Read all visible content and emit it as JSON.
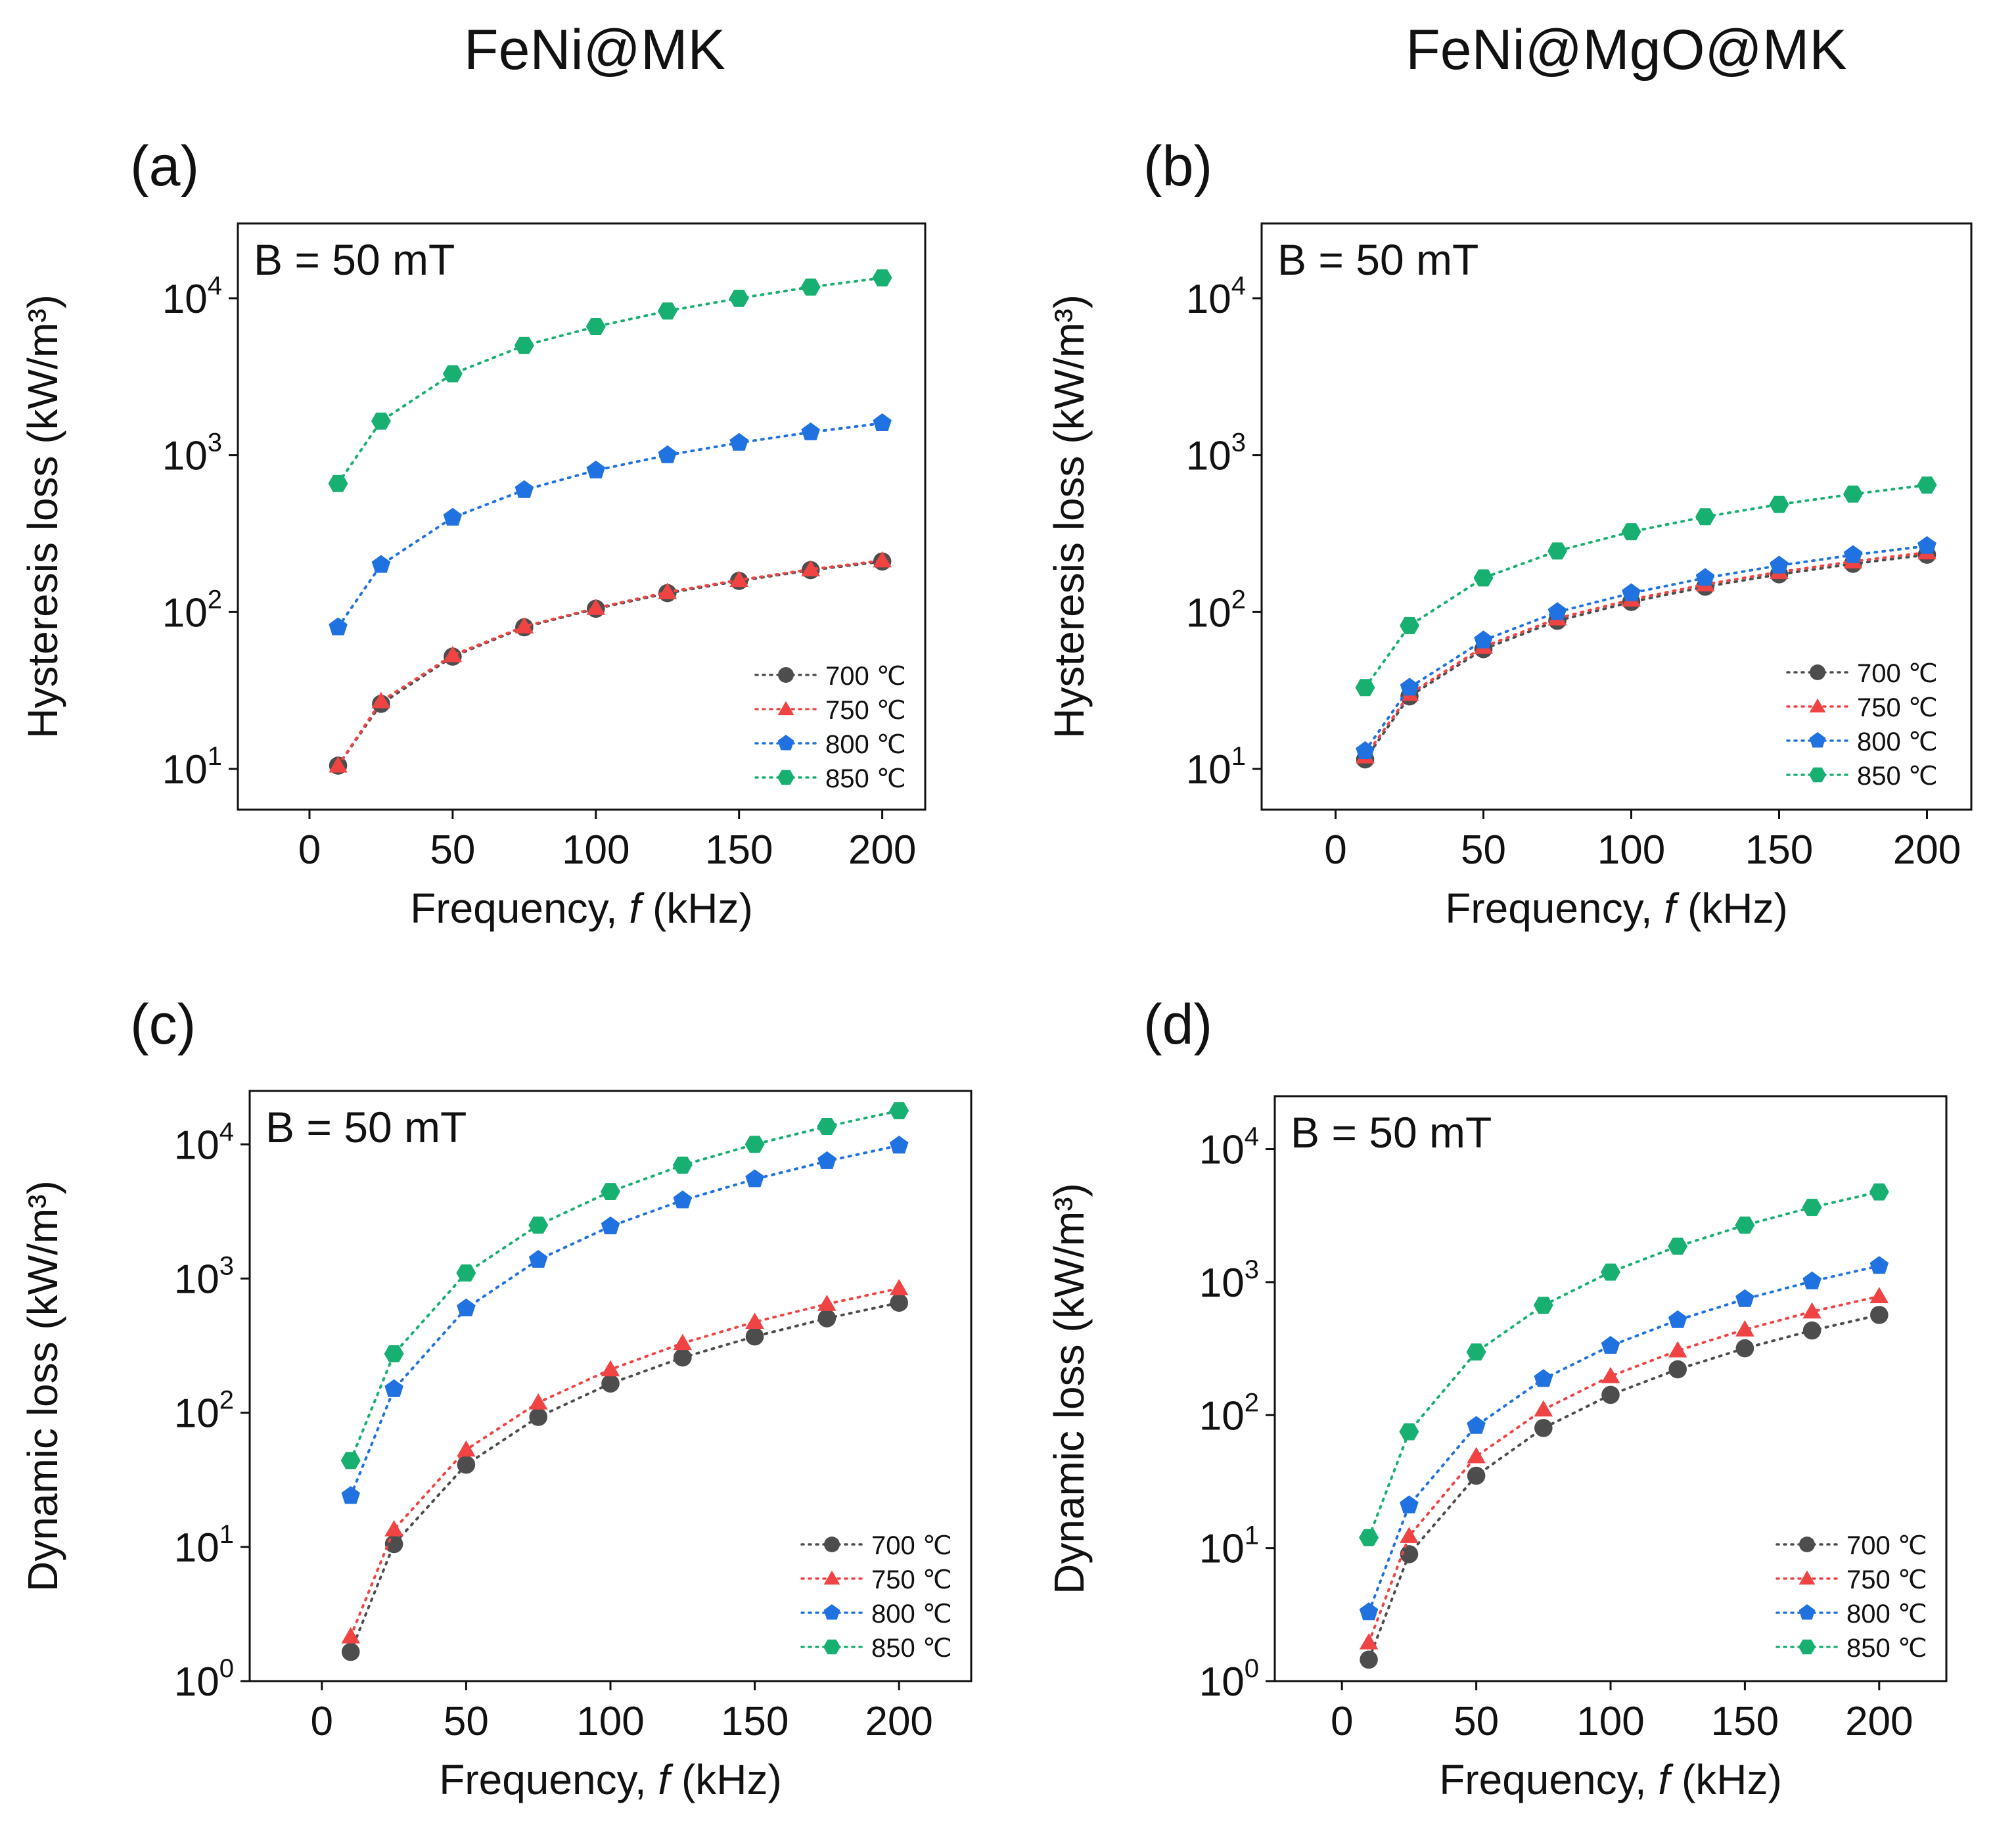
{
  "column_titles": [
    "FeNi@MK",
    "FeNi@MgO@MK"
  ],
  "x_values": [
    10,
    25,
    50,
    75,
    100,
    125,
    150,
    175,
    200
  ],
  "chart_data": [
    {
      "id": "a",
      "type": "line",
      "panel_label": "(a)",
      "annotation": "B = 50 mT",
      "xlabel": "Frequency,",
      "xlabel_symbol": "f",
      "xlabel_unit": "(kHz)",
      "ylabel": "Hysteresis loss (kW/m³)",
      "yscale": "log",
      "xlim": [
        -25,
        215
      ],
      "ylim": [
        5.5,
        30000
      ],
      "xticks": [
        0,
        50,
        100,
        150,
        200
      ],
      "yticks": [
        10,
        100,
        1000,
        10000
      ],
      "ytick_labels": [
        {
          "base": "10",
          "exp": "1"
        },
        {
          "base": "10",
          "exp": "2"
        },
        {
          "base": "10",
          "exp": "3"
        },
        {
          "base": "10",
          "exp": "4"
        }
      ],
      "series": [
        {
          "name": "700 ℃",
          "color": "#4d4d4d",
          "marker": "circle",
          "values": [
            10.5,
            26,
            52,
            80,
            105,
            132,
            158,
            185,
            210
          ]
        },
        {
          "name": "750 ℃",
          "color": "#f04444",
          "marker": "triangle",
          "values": [
            10.5,
            27,
            53,
            81,
            106,
            134,
            160,
            187,
            213
          ]
        },
        {
          "name": "800 ℃",
          "color": "#1f72e0",
          "marker": "pentagon",
          "values": [
            80,
            200,
            400,
            600,
            800,
            1000,
            1200,
            1400,
            1600
          ]
        },
        {
          "name": "850 ℃",
          "color": "#18b070",
          "marker": "hexagon",
          "values": [
            660,
            1650,
            3300,
            5000,
            6600,
            8300,
            10000,
            11800,
            13500
          ]
        }
      ]
    },
    {
      "id": "b",
      "type": "line",
      "panel_label": "(b)",
      "annotation": "B = 50 mT",
      "xlabel": "Frequency,",
      "xlabel_symbol": "f",
      "xlabel_unit": "(kHz)",
      "ylabel": "Hysteresis loss (kW/m³)",
      "yscale": "log",
      "xlim": [
        -25,
        215
      ],
      "ylim": [
        5.5,
        30000
      ],
      "xticks": [
        0,
        50,
        100,
        150,
        200
      ],
      "yticks": [
        10,
        100,
        1000,
        10000
      ],
      "ytick_labels": [
        {
          "base": "10",
          "exp": "1"
        },
        {
          "base": "10",
          "exp": "2"
        },
        {
          "base": "10",
          "exp": "3"
        },
        {
          "base": "10",
          "exp": "4"
        }
      ],
      "series": [
        {
          "name": "700 ℃",
          "color": "#4d4d4d",
          "marker": "circle",
          "values": [
            11.5,
            29,
            58,
            88,
            116,
            145,
            174,
            203,
            232
          ]
        },
        {
          "name": "750 ℃",
          "color": "#f04444",
          "marker": "triangle",
          "values": [
            12,
            30,
            60,
            91,
            120,
            150,
            180,
            210,
            240
          ]
        },
        {
          "name": "800 ℃",
          "color": "#1f72e0",
          "marker": "pentagon",
          "values": [
            13,
            33,
            66,
            100,
            132,
            165,
            198,
            231,
            264
          ]
        },
        {
          "name": "850 ℃",
          "color": "#18b070",
          "marker": "hexagon",
          "values": [
            33,
            82,
            165,
            245,
            325,
            405,
            485,
            565,
            645
          ]
        }
      ]
    },
    {
      "id": "c",
      "type": "line",
      "panel_label": "(c)",
      "annotation": "B = 50 mT",
      "xlabel": "Frequency,",
      "xlabel_symbol": "f",
      "xlabel_unit": "(kHz)",
      "ylabel": "Dynamic loss (kW/m³)",
      "yscale": "log",
      "xlim": [
        -25,
        225
      ],
      "ylim": [
        1,
        25000
      ],
      "xticks": [
        0,
        50,
        100,
        150,
        200
      ],
      "yticks": [
        1,
        10,
        100,
        1000,
        10000
      ],
      "ytick_labels": [
        {
          "base": "10",
          "exp": "0"
        },
        {
          "base": "10",
          "exp": "1"
        },
        {
          "base": "10",
          "exp": "2"
        },
        {
          "base": "10",
          "exp": "3"
        },
        {
          "base": "10",
          "exp": "4"
        }
      ],
      "series": [
        {
          "name": "700 ℃",
          "color": "#4d4d4d",
          "marker": "circle",
          "values": [
            1.65,
            10.5,
            41,
            93,
            165,
            258,
            370,
            505,
            660
          ]
        },
        {
          "name": "750 ℃",
          "color": "#f04444",
          "marker": "triangle",
          "values": [
            2.15,
            13.5,
            53,
            119,
            210,
            330,
            475,
            645,
            845
          ]
        },
        {
          "name": "800 ℃",
          "color": "#1f72e0",
          "marker": "pentagon",
          "values": [
            24,
            150,
            600,
            1380,
            2450,
            3830,
            5500,
            7500,
            9800
          ]
        },
        {
          "name": "850 ℃",
          "color": "#18b070",
          "marker": "hexagon",
          "values": [
            44,
            275,
            1100,
            2500,
            4450,
            7000,
            10000,
            13600,
            17800
          ]
        }
      ]
    },
    {
      "id": "d",
      "type": "line",
      "panel_label": "(d)",
      "annotation": "B = 50 mT",
      "xlabel": "Frequency,",
      "xlabel_symbol": "f",
      "xlabel_unit": "(kHz)",
      "ylabel": "Dynamic loss (kW/m³)",
      "yscale": "log",
      "xlim": [
        -25,
        225
      ],
      "ylim": [
        1,
        25000
      ],
      "xticks": [
        0,
        50,
        100,
        150,
        200
      ],
      "yticks": [
        1,
        10,
        100,
        1000,
        10000
      ],
      "ytick_labels": [
        {
          "base": "10",
          "exp": "0"
        },
        {
          "base": "10",
          "exp": "1"
        },
        {
          "base": "10",
          "exp": "2"
        },
        {
          "base": "10",
          "exp": "3"
        },
        {
          "base": "10",
          "exp": "4"
        }
      ],
      "series": [
        {
          "name": "700 ℃",
          "color": "#4d4d4d",
          "marker": "circle",
          "values": [
            1.45,
            9,
            35,
            80,
            142,
            221,
            318,
            433,
            566
          ]
        },
        {
          "name": "750 ℃",
          "color": "#f04444",
          "marker": "triangle",
          "values": [
            1.95,
            12.3,
            49,
            110,
            196,
            306,
            440,
            600,
            782
          ]
        },
        {
          "name": "800 ℃",
          "color": "#1f72e0",
          "marker": "pentagon",
          "values": [
            3.3,
            21,
            83,
            187,
            332,
            518,
            746,
            1015,
            1325
          ]
        },
        {
          "name": "850 ℃",
          "color": "#18b070",
          "marker": "hexagon",
          "values": [
            12,
            75,
            298,
            670,
            1190,
            1860,
            2680,
            3650,
            4770
          ]
        }
      ]
    }
  ]
}
